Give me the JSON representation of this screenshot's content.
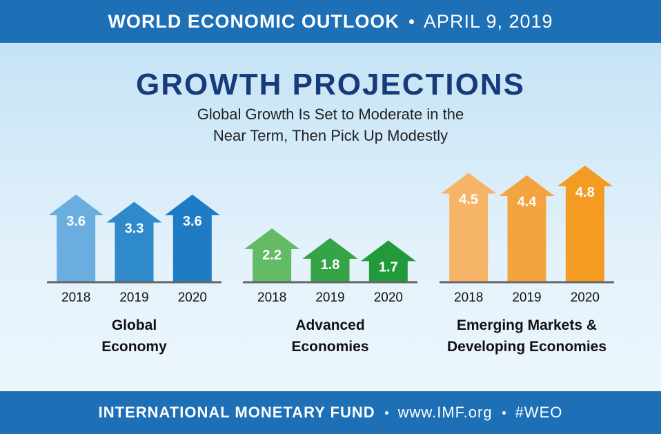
{
  "header": {
    "title": "WORLD ECONOMIC OUTLOOK",
    "date": "APRIL 9, 2019"
  },
  "title": "GROWTH PROJECTIONS",
  "subtitle": "Global Growth Is Set to Moderate in the Near Term, Then Pick Up Modestly",
  "chart_data": [
    {
      "type": "bar",
      "title": "Global Economy",
      "categories": [
        "2018",
        "2019",
        "2020"
      ],
      "values": [
        3.6,
        3.3,
        3.6
      ],
      "colors": [
        "#6aaee0",
        "#2e8acb",
        "#1f7cc4"
      ]
    },
    {
      "type": "bar",
      "title": "Advanced Economies",
      "categories": [
        "2018",
        "2019",
        "2020"
      ],
      "values": [
        2.2,
        1.8,
        1.7
      ],
      "colors": [
        "#63bb63",
        "#34a447",
        "#229a3c"
      ]
    },
    {
      "type": "bar",
      "title": "Emerging Markets & Developing Economies",
      "categories": [
        "2018",
        "2019",
        "2020"
      ],
      "values": [
        4.5,
        4.4,
        4.8
      ],
      "colors": [
        "#f6b466",
        "#f4a43e",
        "#f39b22"
      ]
    }
  ],
  "footer": {
    "org": "INTERNATIONAL MONETARY FUND",
    "url": "www.IMF.org",
    "tag": "#WEO"
  }
}
